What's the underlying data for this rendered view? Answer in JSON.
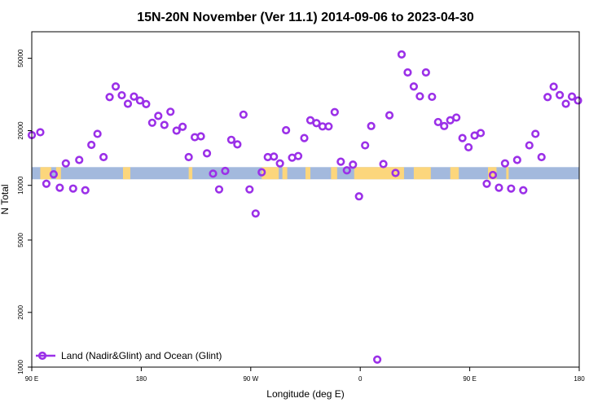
{
  "chart_data": {
    "type": "scatter",
    "title": "15N-20N November (Ver 11.1)   2014-09-06 to 2023-04-30",
    "xlabel": "Longitude (deg E)",
    "ylabel": "N Total",
    "x_axis": {
      "lon_start": 90,
      "lon_end": 450,
      "ticks": [
        {
          "lon": 90,
          "label": "90 E"
        },
        {
          "lon": 180,
          "label": "180"
        },
        {
          "lon": 270,
          "label": "90 W"
        },
        {
          "lon": 360,
          "label": "0"
        },
        {
          "lon": 450,
          "label": "90 E"
        },
        {
          "lon": 540,
          "label": "180"
        }
      ],
      "range": [
        90,
        540
      ]
    },
    "y_axis": {
      "scale": "log",
      "range": [
        1000,
        70000
      ],
      "ticks": [
        {
          "value": 1000,
          "label": "1000"
        },
        {
          "value": 2000,
          "label": "2000"
        },
        {
          "value": 5000,
          "label": "5000"
        },
        {
          "value": 10000,
          "label": "10000"
        },
        {
          "value": 20000,
          "label": "20000"
        },
        {
          "value": 50000,
          "label": "50000"
        }
      ]
    },
    "band": {
      "y_low": 10800,
      "y_high": 12600,
      "ocean_color": "#a3b9dd",
      "land_color": "#fcd67c"
    },
    "legend": {
      "placement": "bottom-left"
    },
    "series": [
      {
        "name": "Land (Nadir&Glint) and Ocean (Glint)",
        "color": "#9b30e8",
        "x": [
          90,
          97,
          102,
          108,
          113,
          118,
          124,
          129,
          134,
          139,
          144,
          149,
          154,
          159,
          164,
          169,
          174,
          179,
          184,
          189,
          194,
          199,
          204,
          209,
          214,
          219,
          224,
          229,
          234,
          239,
          244,
          249,
          254,
          259,
          264,
          269,
          274,
          279,
          284,
          289,
          294,
          299,
          304,
          309,
          314,
          319,
          324,
          329,
          334,
          339,
          344,
          349,
          354,
          359,
          364,
          369,
          374,
          379,
          384,
          389,
          394,
          399,
          404,
          409,
          414,
          419,
          424,
          429,
          434,
          439,
          444,
          449,
          454,
          459,
          464,
          469,
          474,
          479,
          484,
          489,
          494,
          499,
          504,
          509,
          514,
          519,
          524,
          529,
          534,
          539
        ],
        "y": [
          18900,
          19600,
          10200,
          11500,
          9700,
          13200,
          9600,
          13800,
          9400,
          16700,
          19200,
          14300,
          30600,
          35000,
          31300,
          28100,
          30800,
          29300,
          28000,
          22100,
          24100,
          21500,
          25400,
          20000,
          21000,
          14300,
          18400,
          18600,
          15000,
          11600,
          9500,
          12000,
          17800,
          16800,
          24500,
          9500,
          7000,
          11800,
          14300,
          14400,
          13200,
          20100,
          14200,
          14500,
          18200,
          22800,
          22000,
          21100,
          21100,
          25300,
          13500,
          12100,
          13000,
          8700,
          16600,
          21200,
          1100,
          13100,
          24300,
          11700,
          52500,
          41800,
          35000,
          30900,
          41800,
          30700,
          22300,
          21200,
          22800,
          23600,
          18200,
          16200,
          18800,
          19400,
          10200,
          11400,
          9700,
          13200,
          9600,
          13800,
          9400,
          16600,
          19200,
          14300,
          30600,
          34900,
          31400,
          28100,
          30800,
          29300
        ]
      }
    ]
  }
}
